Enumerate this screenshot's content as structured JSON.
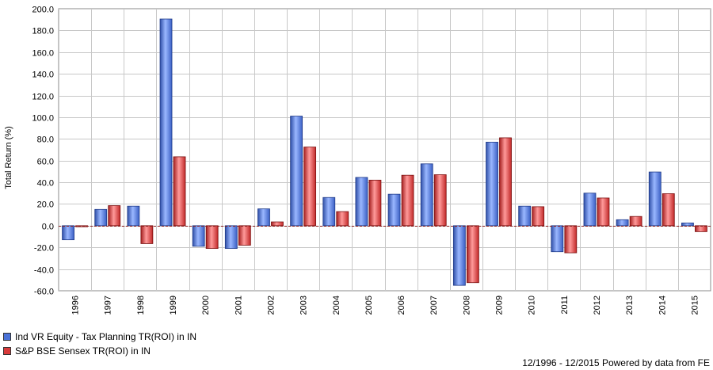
{
  "chart_data": {
    "type": "bar",
    "ylabel": "Total Return (%)",
    "xlabel": "",
    "ylim": [
      -60,
      200
    ],
    "ytick_step": 20,
    "categories": [
      "1996",
      "1997",
      "1998",
      "1999",
      "2000",
      "2001",
      "2002",
      "2003",
      "2004",
      "2005",
      "2006",
      "2007",
      "2008",
      "2009",
      "2010",
      "2011",
      "2012",
      "2013",
      "2014",
      "2015"
    ],
    "series": [
      {
        "name": "Ind VR Equity - Tax Planning TR(ROI) in IN",
        "color": "#4a72d8",
        "values": [
          -13.0,
          15.0,
          18.0,
          190.5,
          -19.0,
          -21.0,
          15.5,
          101.0,
          26.0,
          44.5,
          29.0,
          57.0,
          -55.0,
          77.0,
          18.0,
          -24.0,
          30.0,
          5.5,
          49.5,
          2.5
        ]
      },
      {
        "name": "S&P BSE Sensex TR(ROI) in IN",
        "color": "#d83a3a",
        "values": [
          -1.0,
          18.5,
          -16.5,
          63.5,
          -21.0,
          -18.0,
          3.5,
          72.5,
          13.0,
          42.0,
          46.5,
          47.0,
          -52.5,
          81.0,
          17.5,
          -25.0,
          25.5,
          8.5,
          29.5,
          -5.5
        ]
      }
    ],
    "grid": true,
    "legend_position": "bottom-left"
  },
  "footer": {
    "text": "12/1996 - 12/2015 Powered by data from FE"
  }
}
